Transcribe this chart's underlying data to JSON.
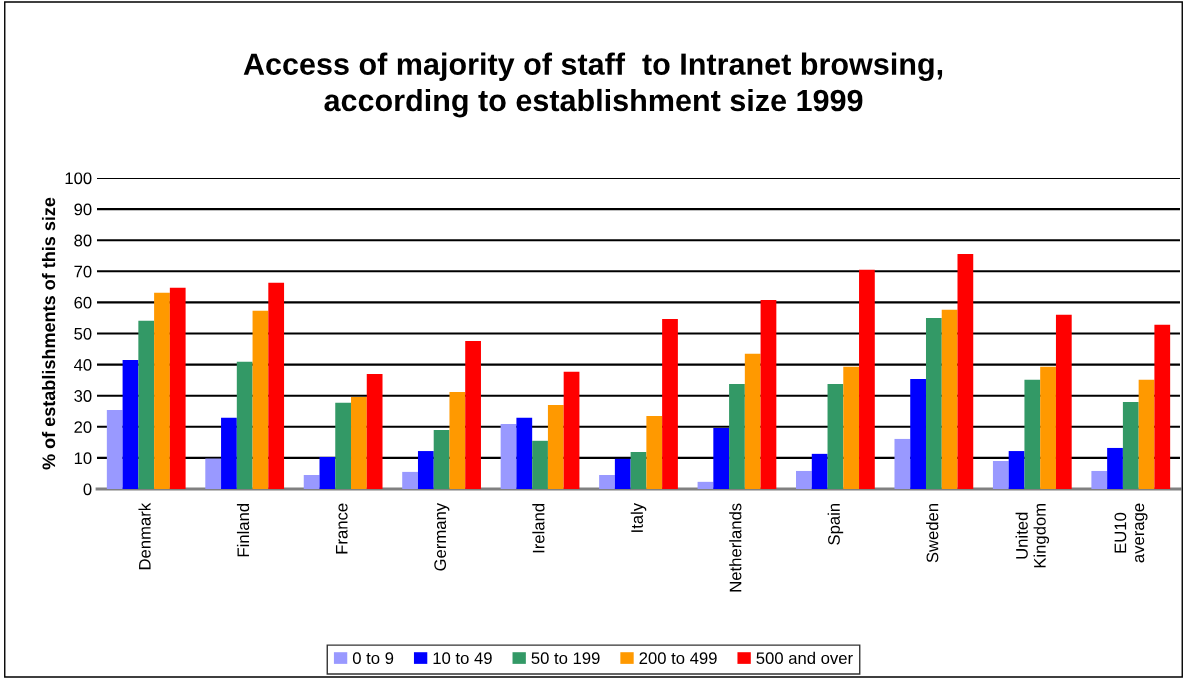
{
  "chart_data": {
    "type": "bar",
    "title": "Access of majority of staff  to Intranet browsing,\naccording to establishment size 1999",
    "ylabel": "% of establishments of this size",
    "categories": [
      "Denmark",
      "Finland",
      "France",
      "Germany",
      "Ireland",
      "Italy",
      "Netherlands",
      "Spain",
      "Sweden",
      "United\nKingdom",
      "EU10\naverage"
    ],
    "series": [
      {
        "name": "0 to 9",
        "color": "#9999ff",
        "values": [
          25.4,
          9.8,
          4.5,
          5.5,
          20.9,
          4.5,
          2.3,
          5.8,
          16.1,
          9.0,
          5.8
        ]
      },
      {
        "name": "10 to 49",
        "color": "#0000ff",
        "values": [
          41.5,
          22.9,
          10.3,
          12.2,
          22.9,
          9.7,
          19.6,
          11.3,
          35.4,
          12.2,
          13.2
        ]
      },
      {
        "name": "50 to 199",
        "color": "#339966",
        "values": [
          54.1,
          40.9,
          27.7,
          19.0,
          15.5,
          11.9,
          33.8,
          33.8,
          55.0,
          35.1,
          28.0
        ]
      },
      {
        "name": "200 to 499",
        "color": "#ff9900",
        "values": [
          63.1,
          57.3,
          29.6,
          31.2,
          27.0,
          23.5,
          43.5,
          39.3,
          57.6,
          39.3,
          35.1
        ]
      },
      {
        "name": "500 and over",
        "color": "#ff0000",
        "values": [
          64.7,
          66.3,
          37.0,
          47.6,
          37.7,
          54.7,
          60.8,
          70.5,
          75.6,
          56.0,
          52.8
        ]
      }
    ],
    "ylim": [
      0,
      100
    ],
    "yticks": [
      0,
      10,
      20,
      30,
      40,
      50,
      60,
      70,
      80,
      90,
      100
    ],
    "grid": "y",
    "legend": "bottom"
  }
}
